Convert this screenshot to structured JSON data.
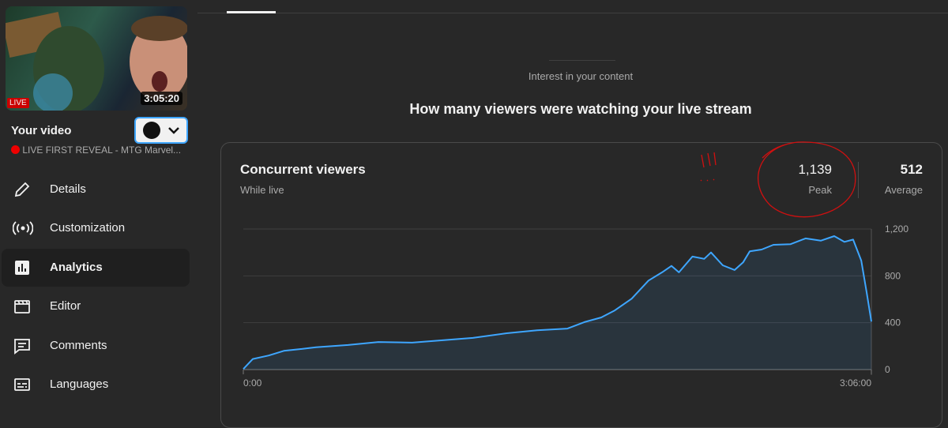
{
  "sidebar": {
    "thumbnail": {
      "badge": "LIVE",
      "duration": "3:05:20"
    },
    "title": "Your video",
    "video_name": "LIVE FIRST REVEAL - MTG Marvel...",
    "nav": [
      "Details",
      "Customization",
      "Analytics",
      "Editor",
      "Comments",
      "Languages"
    ]
  },
  "header": {
    "section": "Interest in your content",
    "title": "How many viewers were watching your live stream"
  },
  "card": {
    "title": "Concurrent viewers",
    "subtitle": "While live",
    "stats": [
      {
        "value": "1,139",
        "label": "Peak"
      },
      {
        "value": "512",
        "label": "Average"
      }
    ]
  },
  "chart_data": {
    "type": "area",
    "color": "#3ea6ff",
    "grid": true,
    "x": [
      0,
      2.8,
      7.5,
      12,
      17,
      21.5,
      31,
      40,
      50,
      59,
      68,
      78,
      87,
      96,
      101,
      106,
      110,
      115,
      120,
      124,
      126.8,
      129,
      133,
      136.5,
      138.5,
      142,
      145.5,
      148,
      150,
      153.5,
      157,
      162,
      166.5,
      171,
      175,
      178,
      180.6,
      183,
      184.6,
      186
    ],
    "values": [
      5,
      90,
      120,
      160,
      175,
      190,
      210,
      235,
      230,
      250,
      270,
      310,
      335,
      350,
      405,
      445,
      505,
      605,
      760,
      830,
      885,
      830,
      965,
      945,
      1000,
      890,
      850,
      915,
      1010,
      1025,
      1065,
      1070,
      1120,
      1100,
      1139,
      1090,
      1110,
      930,
      660,
      410
    ],
    "xlim": [
      0,
      186
    ],
    "xticks": [
      {
        "value": 0,
        "label": "0:00"
      },
      {
        "value": 186,
        "label": "3:06:00"
      }
    ],
    "ylim": [
      0,
      1200
    ],
    "yticks": [
      0,
      400,
      800,
      {
        "value": 1200,
        "label": "1,200"
      }
    ]
  }
}
